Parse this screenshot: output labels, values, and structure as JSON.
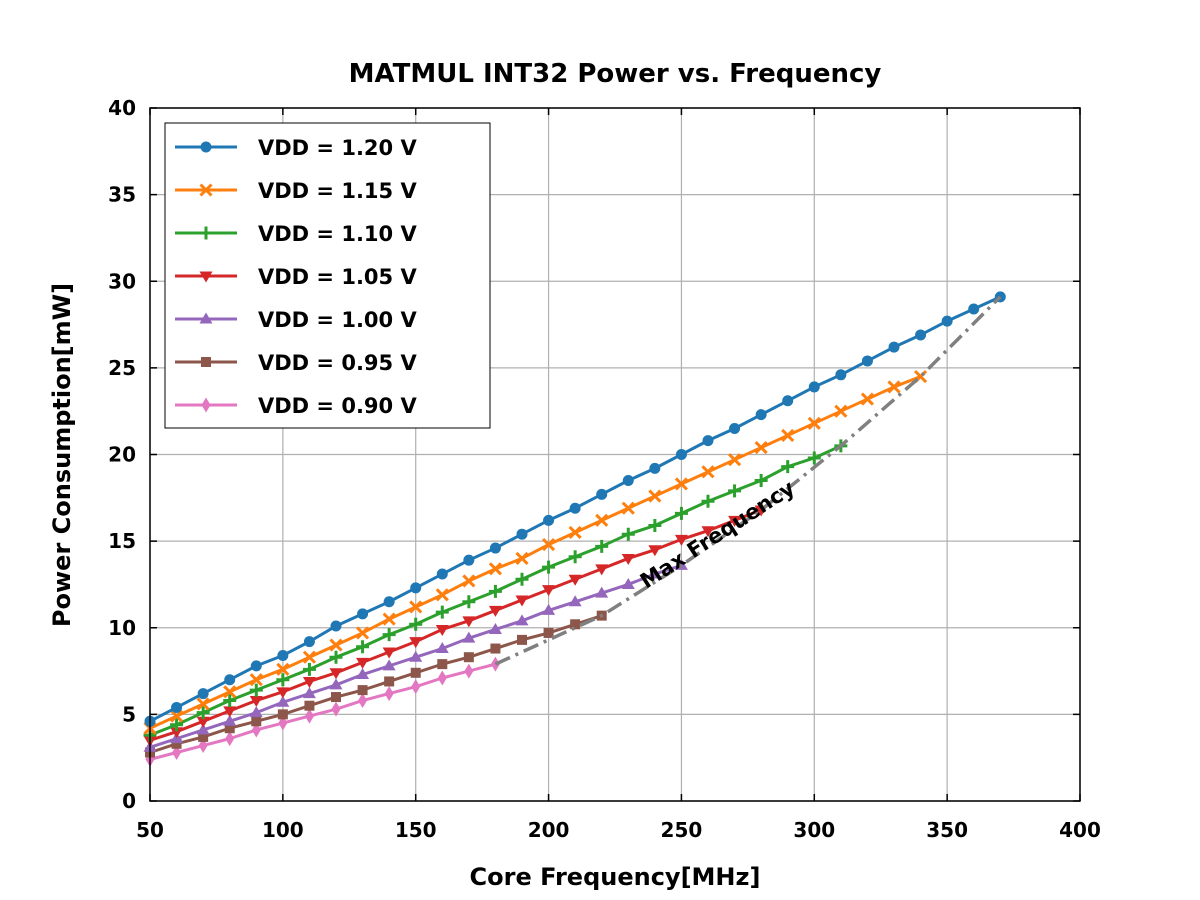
{
  "chart_data": {
    "type": "line",
    "title": "MATMUL INT32 Power vs. Frequency",
    "xlabel": "Core Frequency[MHz]",
    "ylabel": "Power Consumption[mW]",
    "xlim": [
      50,
      400
    ],
    "ylim": [
      0,
      40
    ],
    "xticks": [
      "50",
      "100",
      "150",
      "200",
      "250",
      "300",
      "350",
      "400"
    ],
    "yticks": [
      "0",
      "5",
      "10",
      "15",
      "20",
      "25",
      "30",
      "35",
      "40"
    ],
    "grid": true,
    "legend_position": "top-left",
    "series": [
      {
        "name": "VDD = 1.20 V",
        "color": "#1f77b4",
        "marker": "circle",
        "x": [
          50,
          60,
          70,
          80,
          90,
          100,
          110,
          120,
          130,
          140,
          150,
          160,
          170,
          180,
          190,
          200,
          210,
          220,
          230,
          240,
          250,
          260,
          270,
          280,
          290,
          300,
          310,
          320,
          330,
          340,
          350,
          360,
          370
        ],
        "y": [
          4.6,
          5.4,
          6.2,
          7.0,
          7.8,
          8.4,
          9.2,
          10.1,
          10.8,
          11.5,
          12.3,
          13.1,
          13.9,
          14.6,
          15.4,
          16.2,
          16.9,
          17.7,
          18.5,
          19.2,
          20.0,
          20.8,
          21.5,
          22.3,
          23.1,
          23.9,
          24.6,
          25.4,
          26.2,
          26.9,
          27.7,
          28.4,
          29.1
        ]
      },
      {
        "name": "VDD = 1.15 V",
        "color": "#ff7f0e",
        "marker": "x",
        "x": [
          50,
          60,
          70,
          80,
          90,
          100,
          110,
          120,
          130,
          140,
          150,
          160,
          170,
          180,
          190,
          200,
          210,
          220,
          230,
          240,
          250,
          260,
          270,
          280,
          290,
          300,
          310,
          320,
          330,
          340
        ],
        "y": [
          4.2,
          4.9,
          5.6,
          6.3,
          7.0,
          7.6,
          8.3,
          9.0,
          9.7,
          10.5,
          11.2,
          11.9,
          12.7,
          13.4,
          14.0,
          14.8,
          15.5,
          16.2,
          16.9,
          17.6,
          18.3,
          19.0,
          19.7,
          20.4,
          21.1,
          21.8,
          22.5,
          23.2,
          23.9,
          24.5
        ]
      },
      {
        "name": "VDD = 1.10 V",
        "color": "#2ca02c",
        "marker": "plus",
        "x": [
          50,
          60,
          70,
          80,
          90,
          100,
          110,
          120,
          130,
          140,
          150,
          160,
          170,
          180,
          190,
          200,
          210,
          220,
          230,
          240,
          250,
          260,
          270,
          280,
          290,
          300,
          310
        ],
        "y": [
          3.8,
          4.4,
          5.1,
          5.8,
          6.4,
          7.0,
          7.6,
          8.3,
          8.9,
          9.6,
          10.2,
          10.9,
          11.5,
          12.1,
          12.8,
          13.5,
          14.1,
          14.7,
          15.4,
          15.9,
          16.6,
          17.3,
          17.9,
          18.5,
          19.3,
          19.8,
          20.5
        ]
      },
      {
        "name": "VDD = 1.05 V",
        "color": "#d62728",
        "marker": "triangle-down",
        "x": [
          50,
          60,
          70,
          80,
          90,
          100,
          110,
          120,
          130,
          140,
          150,
          160,
          170,
          180,
          190,
          200,
          210,
          220,
          230,
          240,
          250,
          260,
          270,
          280
        ],
        "y": [
          3.5,
          4.0,
          4.6,
          5.2,
          5.8,
          6.3,
          6.9,
          7.4,
          8.0,
          8.6,
          9.2,
          9.9,
          10.4,
          11.0,
          11.6,
          12.2,
          12.8,
          13.4,
          14.0,
          14.5,
          15.1,
          15.6,
          16.2,
          16.8
        ]
      },
      {
        "name": "VDD = 1.00 V",
        "color": "#9467bd",
        "marker": "triangle-up",
        "x": [
          50,
          60,
          70,
          80,
          90,
          100,
          110,
          120,
          130,
          140,
          150,
          160,
          170,
          180,
          190,
          200,
          210,
          220,
          230,
          240,
          250
        ],
        "y": [
          3.1,
          3.6,
          4.1,
          4.6,
          5.1,
          5.7,
          6.2,
          6.7,
          7.3,
          7.8,
          8.3,
          8.8,
          9.4,
          9.9,
          10.4,
          11.0,
          11.5,
          12.0,
          12.5,
          13.1,
          13.6
        ]
      },
      {
        "name": "VDD = 0.95 V",
        "color": "#8c564b",
        "marker": "square",
        "x": [
          50,
          60,
          70,
          80,
          90,
          100,
          110,
          120,
          130,
          140,
          150,
          160,
          170,
          180,
          190,
          200,
          210,
          220
        ],
        "y": [
          2.8,
          3.3,
          3.7,
          4.2,
          4.6,
          5.0,
          5.5,
          6.0,
          6.4,
          6.9,
          7.4,
          7.9,
          8.3,
          8.8,
          9.3,
          9.7,
          10.2,
          10.7
        ]
      },
      {
        "name": "VDD = 0.90 V",
        "color": "#e377c2",
        "marker": "diamond",
        "x": [
          50,
          60,
          70,
          80,
          90,
          100,
          110,
          120,
          130,
          140,
          150,
          160,
          170,
          180
        ],
        "y": [
          2.4,
          2.8,
          3.2,
          3.6,
          4.1,
          4.5,
          4.9,
          5.3,
          5.8,
          6.2,
          6.6,
          7.1,
          7.5,
          7.9
        ]
      }
    ],
    "max_frequency_line": {
      "label": "Max Frequency",
      "color": "#808080",
      "x": [
        180,
        220,
        250,
        280,
        310,
        340,
        370
      ],
      "y": [
        7.9,
        10.7,
        13.6,
        16.8,
        20.5,
        24.5,
        29.1
      ]
    }
  }
}
